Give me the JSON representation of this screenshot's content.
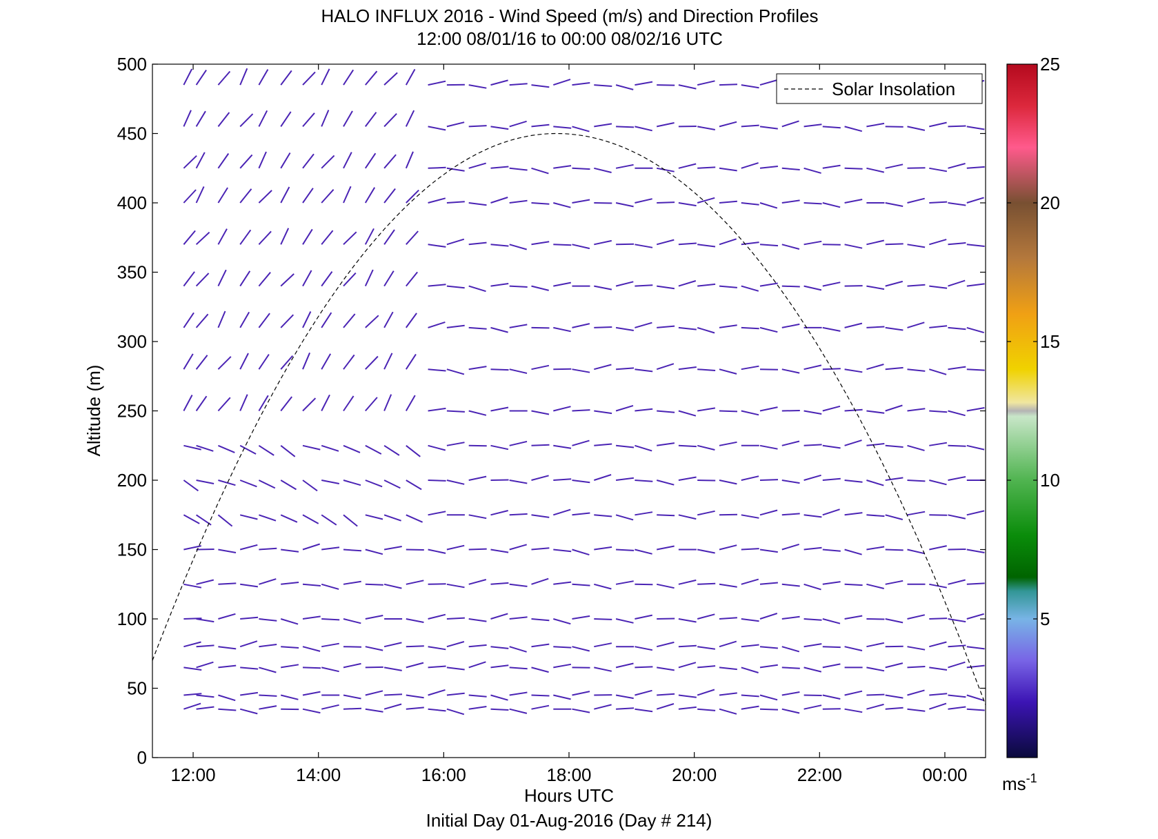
{
  "chart_data": {
    "type": "wind_barb_profile",
    "title": "HALO INFLUX 2016 - Wind Speed (m/s) and Direction Profiles",
    "subtitle": "12:00 08/01/16 to 00:00 08/02/16  UTC",
    "xlabel": "Hours UTC",
    "footer": "Initial Day 01-Aug-2016 (Day # 214)",
    "ylabel": "Altitude (m)",
    "xlim_hours": [
      11.35,
      24.65
    ],
    "ylim": [
      0,
      500
    ],
    "xticks": [
      {
        "hour": 12,
        "label": "12:00"
      },
      {
        "hour": 14,
        "label": "14:00"
      },
      {
        "hour": 16,
        "label": "16:00"
      },
      {
        "hour": 18,
        "label": "18:00"
      },
      {
        "hour": 20,
        "label": "20:00"
      },
      {
        "hour": 22,
        "label": "22:00"
      },
      {
        "hour": 24,
        "label": "00:00"
      }
    ],
    "yticks": [
      0,
      50,
      100,
      150,
      200,
      250,
      300,
      350,
      400,
      450,
      500
    ],
    "legend": {
      "position": "top-right",
      "entries": [
        {
          "label": "Solar Insolation",
          "style": "dashed",
          "color": "#000000"
        }
      ]
    },
    "solar_insolation": {
      "style": "dashed",
      "peak_hour": 17.8,
      "peak_altitude": 450,
      "start_hour": 11.35,
      "start_altitude": 70,
      "end_hour": 24.65,
      "end_altitude": 38
    },
    "colorbar": {
      "min": 0,
      "max": 25,
      "ticks": [
        5,
        10,
        15,
        20,
        25
      ],
      "unit": "ms",
      "unit_exp": "-1",
      "stops": [
        {
          "v": 0,
          "c": "#0a0a3c"
        },
        {
          "v": 2,
          "c": "#3c14b4"
        },
        {
          "v": 3.5,
          "c": "#7864e6"
        },
        {
          "v": 5,
          "c": "#78b4e6"
        },
        {
          "v": 6,
          "c": "#329696"
        },
        {
          "v": 6.5,
          "c": "#006400"
        },
        {
          "v": 8,
          "c": "#0a8c0a"
        },
        {
          "v": 10,
          "c": "#50b450"
        },
        {
          "v": 12.3,
          "c": "#c8e6c8"
        },
        {
          "v": 12.5,
          "c": "#b4b4b4"
        },
        {
          "v": 12.8,
          "c": "#f0e6a0"
        },
        {
          "v": 14,
          "c": "#f0d200"
        },
        {
          "v": 16,
          "c": "#f0a014"
        },
        {
          "v": 18,
          "c": "#b4783c"
        },
        {
          "v": 20,
          "c": "#785032"
        },
        {
          "v": 22,
          "c": "#ff5a8c"
        },
        {
          "v": 23.5,
          "c": "#dc283c"
        },
        {
          "v": 25,
          "c": "#b40a1e"
        }
      ]
    },
    "wind_field": {
      "times_hours": [
        11.85,
        12.05,
        12.4,
        12.75,
        13.05,
        13.4,
        13.75,
        14.05,
        14.4,
        14.75,
        15.05,
        15.4,
        15.75,
        16.05,
        16.4,
        16.75,
        17.05,
        17.4,
        17.75,
        18.05,
        18.4,
        18.75,
        19.05,
        19.4,
        19.75,
        20.05,
        20.4,
        20.75,
        21.05,
        21.4,
        21.75,
        22.05,
        22.4,
        22.75,
        23.05,
        23.4,
        23.75,
        24.05,
        24.35
      ],
      "altitudes_m": [
        35,
        45,
        65,
        80,
        100,
        125,
        150,
        175,
        200,
        225,
        250,
        280,
        310,
        340,
        370,
        400,
        425,
        455,
        485
      ],
      "speed_ms": 2.5,
      "color": "#4a23b4"
    }
  }
}
